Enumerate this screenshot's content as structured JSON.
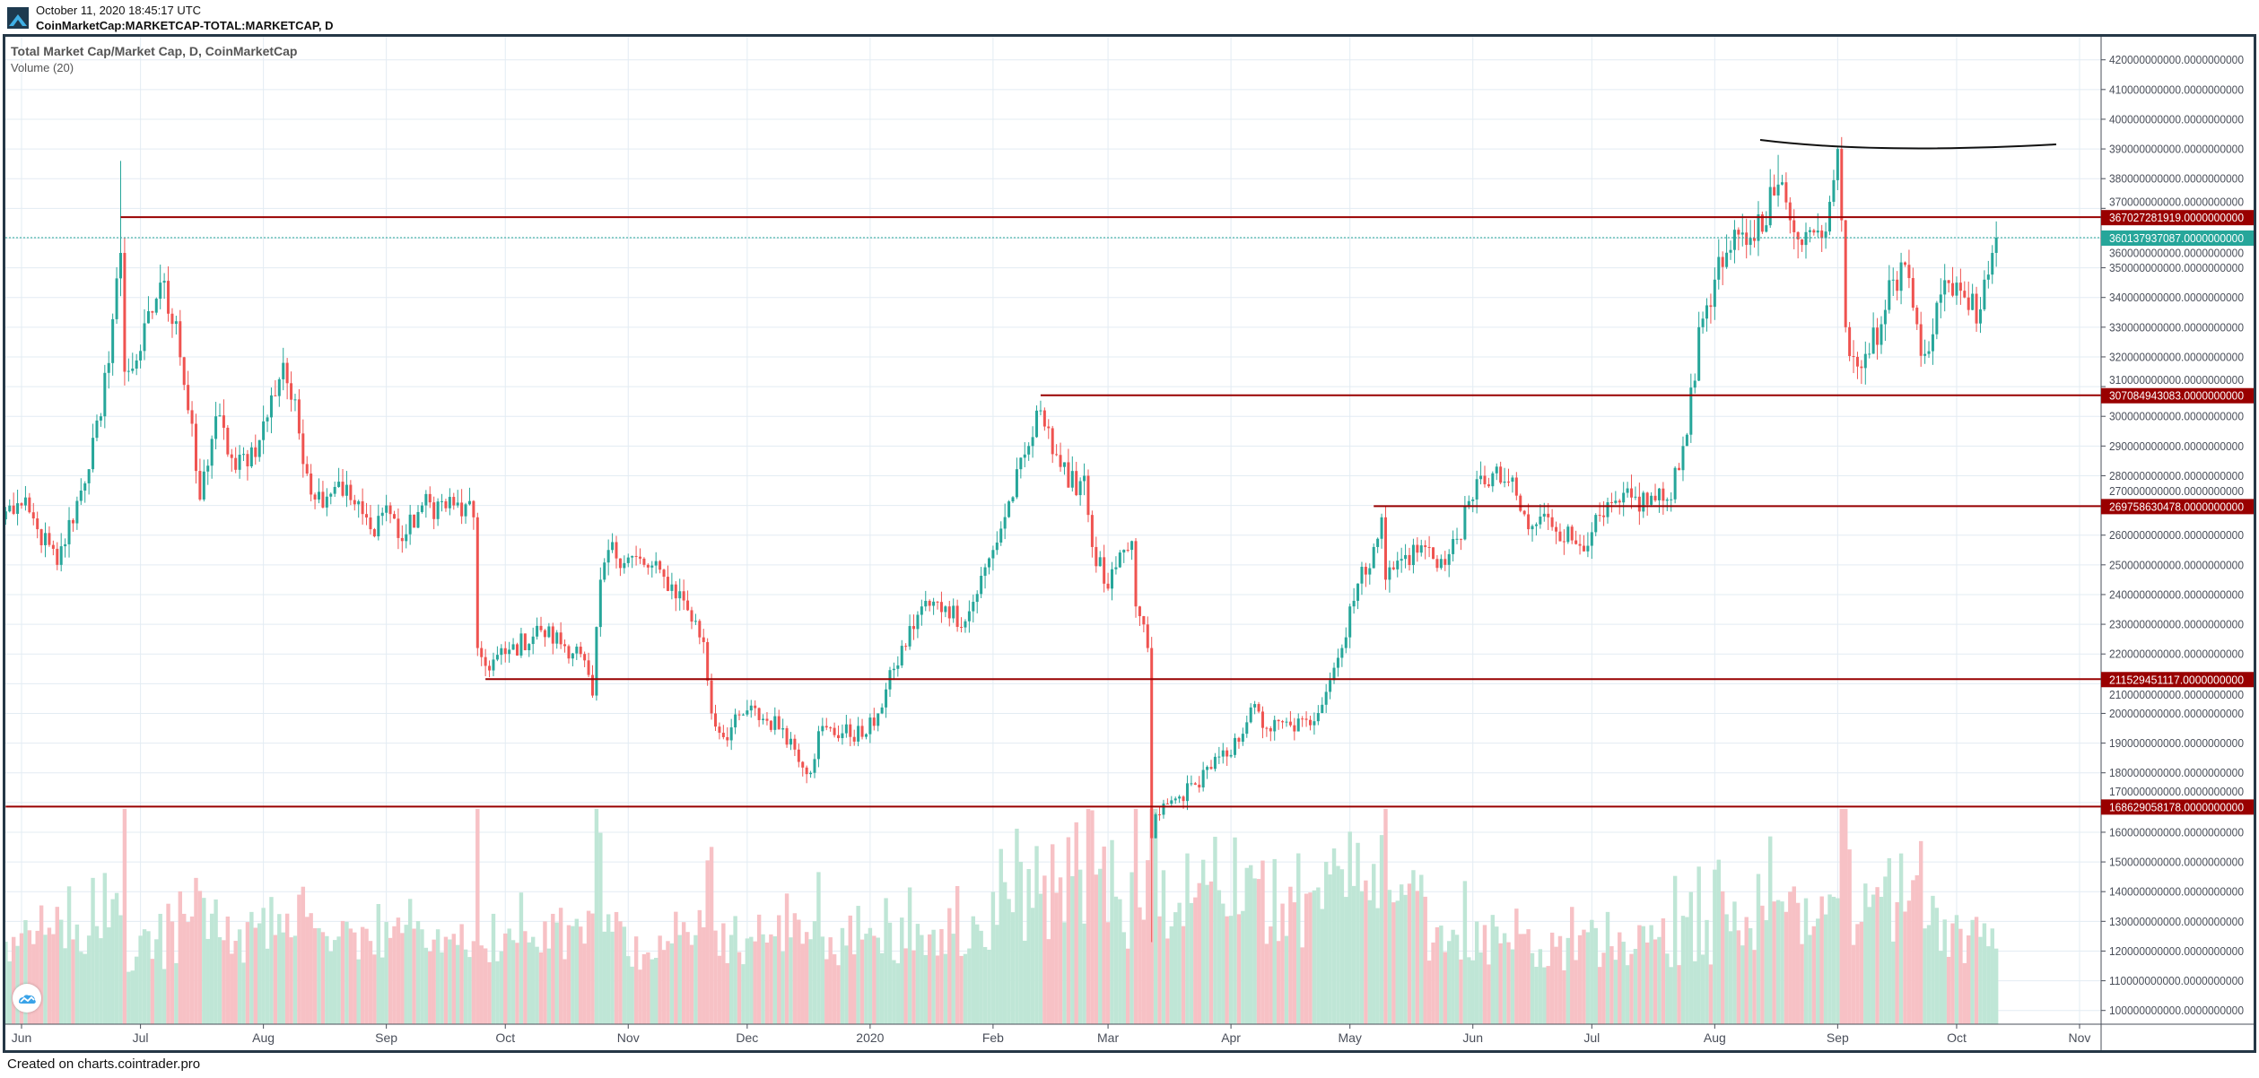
{
  "header": {
    "timestamp": "October 11, 2020 18:45:17 UTC",
    "symbol": "CoinMarketCap:MARKETCAP-TOTAL:MARKETCAP, D"
  },
  "legend": {
    "main": "Total Market Cap/Market Cap, D, CoinMarketCap",
    "volume": "Volume (20)"
  },
  "footer": "Created on charts.cointrader.pro",
  "colors": {
    "up": "#26a69a",
    "down": "#ef5350",
    "level": "#990000",
    "last": "#26a69a",
    "grid": "#e3ecf3",
    "frame": "#253746"
  },
  "chart_data": {
    "type": "candlestick",
    "title": "Total Market Cap/Market Cap, D, CoinMarketCap",
    "interval": "D",
    "ylim_billions": [
      93,
      428
    ],
    "y_ticks": [
      "420000000000.0000000000",
      "410000000000.0000000000",
      "400000000000.0000000000",
      "390000000000.0000000000",
      "380000000000.0000000000",
      "370000000000.0000000000",
      "360000000000.0000000000",
      "350000000000.0000000000",
      "340000000000.0000000000",
      "330000000000.0000000000",
      "320000000000.0000000000",
      "310000000000.0000000000",
      "300000000000.0000000000",
      "290000000000.0000000000",
      "280000000000.0000000000",
      "270000000000.0000000000",
      "260000000000.0000000000",
      "250000000000.0000000000",
      "240000000000.0000000000",
      "230000000000.0000000000",
      "220000000000.0000000000",
      "210000000000.0000000000",
      "200000000000.0000000000",
      "190000000000.0000000000",
      "180000000000.0000000000",
      "170000000000.0000000000",
      "160000000000.0000000000",
      "150000000000.0000000000",
      "140000000000.0000000000",
      "130000000000.0000000000",
      "120000000000.0000000000",
      "110000000000.0000000000",
      "100000000000.0000000000"
    ],
    "x_ticks": [
      {
        "label": "Jun",
        "date": "2019-06-01"
      },
      {
        "label": "Jul",
        "date": "2019-07-01"
      },
      {
        "label": "Aug",
        "date": "2019-08-01"
      },
      {
        "label": "Sep",
        "date": "2019-09-01"
      },
      {
        "label": "Oct",
        "date": "2019-10-01"
      },
      {
        "label": "Nov",
        "date": "2019-11-01"
      },
      {
        "label": "Dec",
        "date": "2019-12-01"
      },
      {
        "label": "2020",
        "date": "2020-01-01"
      },
      {
        "label": "Feb",
        "date": "2020-02-01"
      },
      {
        "label": "Mar",
        "date": "2020-03-01"
      },
      {
        "label": "Apr",
        "date": "2020-04-01"
      },
      {
        "label": "May",
        "date": "2020-05-01"
      },
      {
        "label": "Jun",
        "date": "2020-06-01"
      },
      {
        "label": "Jul",
        "date": "2020-07-01"
      },
      {
        "label": "Aug",
        "date": "2020-08-01"
      },
      {
        "label": "Sep",
        "date": "2020-09-01"
      },
      {
        "label": "Oct",
        "date": "2020-10-01"
      },
      {
        "label": "Nov",
        "date": "2020-11-01"
      }
    ],
    "close_anchors_billions": [
      [
        "2019-05-28",
        268
      ],
      [
        "2019-06-01",
        270
      ],
      [
        "2019-06-05",
        262
      ],
      [
        "2019-06-10",
        250
      ],
      [
        "2019-06-16",
        275
      ],
      [
        "2019-06-21",
        300
      ],
      [
        "2019-06-26",
        355
      ],
      [
        "2019-06-27",
        315
      ],
      [
        "2019-07-01",
        322
      ],
      [
        "2019-07-06",
        345
      ],
      [
        "2019-07-10",
        332
      ],
      [
        "2019-07-16",
        272
      ],
      [
        "2019-07-20",
        300
      ],
      [
        "2019-07-25",
        282
      ],
      [
        "2019-07-31",
        292
      ],
      [
        "2019-08-06",
        318
      ],
      [
        "2019-08-14",
        272
      ],
      [
        "2019-08-20",
        278
      ],
      [
        "2019-08-28",
        262
      ],
      [
        "2019-09-01",
        270
      ],
      [
        "2019-09-05",
        258
      ],
      [
        "2019-09-10",
        270
      ],
      [
        "2019-09-18",
        270
      ],
      [
        "2019-09-23",
        266
      ],
      [
        "2019-09-24",
        222
      ],
      [
        "2019-09-26",
        216
      ],
      [
        "2019-10-01",
        220
      ],
      [
        "2019-10-10",
        228
      ],
      [
        "2019-10-20",
        220
      ],
      [
        "2019-10-23",
        206
      ],
      [
        "2019-10-25",
        245
      ],
      [
        "2019-10-27",
        255
      ],
      [
        "2019-11-05",
        250
      ],
      [
        "2019-11-10",
        246
      ],
      [
        "2019-11-15",
        238
      ],
      [
        "2019-11-20",
        224
      ],
      [
        "2019-11-22",
        200
      ],
      [
        "2019-11-25",
        192
      ],
      [
        "2019-12-01",
        201
      ],
      [
        "2019-12-10",
        195
      ],
      [
        "2019-12-17",
        180
      ],
      [
        "2019-12-19",
        194
      ],
      [
        "2019-12-31",
        193
      ],
      [
        "2020-01-03",
        200
      ],
      [
        "2020-01-07",
        215
      ],
      [
        "2020-01-14",
        236
      ],
      [
        "2020-01-20",
        236
      ],
      [
        "2020-01-25",
        231
      ],
      [
        "2020-02-01",
        255
      ],
      [
        "2020-02-10",
        290
      ],
      [
        "2020-02-13",
        302
      ],
      [
        "2020-02-15",
        296
      ],
      [
        "2020-02-20",
        276
      ],
      [
        "2020-02-24",
        280
      ],
      [
        "2020-02-26",
        256
      ],
      [
        "2020-03-01",
        242
      ],
      [
        "2020-03-07",
        258
      ],
      [
        "2020-03-08",
        236
      ],
      [
        "2020-03-11",
        222
      ],
      [
        "2020-03-12",
        158
      ],
      [
        "2020-03-13",
        166
      ],
      [
        "2020-03-19",
        172
      ],
      [
        "2020-03-23",
        176
      ],
      [
        "2020-03-26",
        182
      ],
      [
        "2020-04-01",
        186
      ],
      [
        "2020-04-06",
        202
      ],
      [
        "2020-04-10",
        195
      ],
      [
        "2020-04-16",
        196
      ],
      [
        "2020-04-21",
        196
      ],
      [
        "2020-04-29",
        222
      ],
      [
        "2020-05-01",
        236
      ],
      [
        "2020-05-07",
        256
      ],
      [
        "2020-05-09",
        266
      ],
      [
        "2020-05-10",
        245
      ],
      [
        "2020-05-14",
        252
      ],
      [
        "2020-05-20",
        256
      ],
      [
        "2020-05-25",
        250
      ],
      [
        "2020-06-01",
        272
      ],
      [
        "2020-06-03",
        280
      ],
      [
        "2020-06-10",
        278
      ],
      [
        "2020-06-15",
        262
      ],
      [
        "2020-06-20",
        266
      ],
      [
        "2020-06-27",
        257
      ],
      [
        "2020-07-01",
        261
      ],
      [
        "2020-07-08",
        271
      ],
      [
        "2020-07-20",
        272
      ],
      [
        "2020-07-24",
        290
      ],
      [
        "2020-07-27",
        312
      ],
      [
        "2020-07-28",
        330
      ],
      [
        "2020-08-01",
        346
      ],
      [
        "2020-08-05",
        356
      ],
      [
        "2020-08-10",
        360
      ],
      [
        "2020-08-17",
        378
      ],
      [
        "2020-08-20",
        366
      ],
      [
        "2020-08-24",
        362
      ],
      [
        "2020-08-28",
        360
      ],
      [
        "2020-09-01",
        390
      ],
      [
        "2020-09-02",
        366
      ],
      [
        "2020-09-03",
        330
      ],
      [
        "2020-09-05",
        320
      ],
      [
        "2020-09-08",
        321
      ],
      [
        "2020-09-12",
        331
      ],
      [
        "2020-09-15",
        346
      ],
      [
        "2020-09-18",
        351
      ],
      [
        "2020-09-21",
        331
      ],
      [
        "2020-09-23",
        321
      ],
      [
        "2020-09-27",
        341
      ],
      [
        "2020-10-01",
        345
      ],
      [
        "2020-10-03",
        340
      ],
      [
        "2020-10-07",
        336
      ],
      [
        "2020-10-08",
        346
      ],
      [
        "2020-10-10",
        355
      ],
      [
        "2020-10-11",
        360.137937087
      ]
    ],
    "wick_extremes_billions": [
      {
        "date": "2019-06-26",
        "high": 386
      },
      {
        "date": "2020-03-12",
        "low": 123
      },
      {
        "date": "2020-09-02",
        "high": 394
      },
      {
        "date": "2020-08-17",
        "high": 388
      }
    ],
    "levels": [
      {
        "label": "367027281919.0000000000",
        "value": 367.027281919,
        "from": "2019-06-26"
      },
      {
        "label": "307084943083.0000000000",
        "value": 307.084943083,
        "from": "2020-02-13"
      },
      {
        "label": "269758630478.0000000000",
        "value": 269.758630478,
        "from": "2020-05-07"
      },
      {
        "label": "211529451117.0000000000",
        "value": 211.529451117,
        "from": "2019-09-26"
      },
      {
        "label": "168629058178.0000000000",
        "value": 168.629058178,
        "from": "2019-05-28"
      }
    ],
    "last_price": {
      "label": "360137937087.0000000000",
      "value": 360.137937087
    },
    "volume_ma_period": 20
  }
}
